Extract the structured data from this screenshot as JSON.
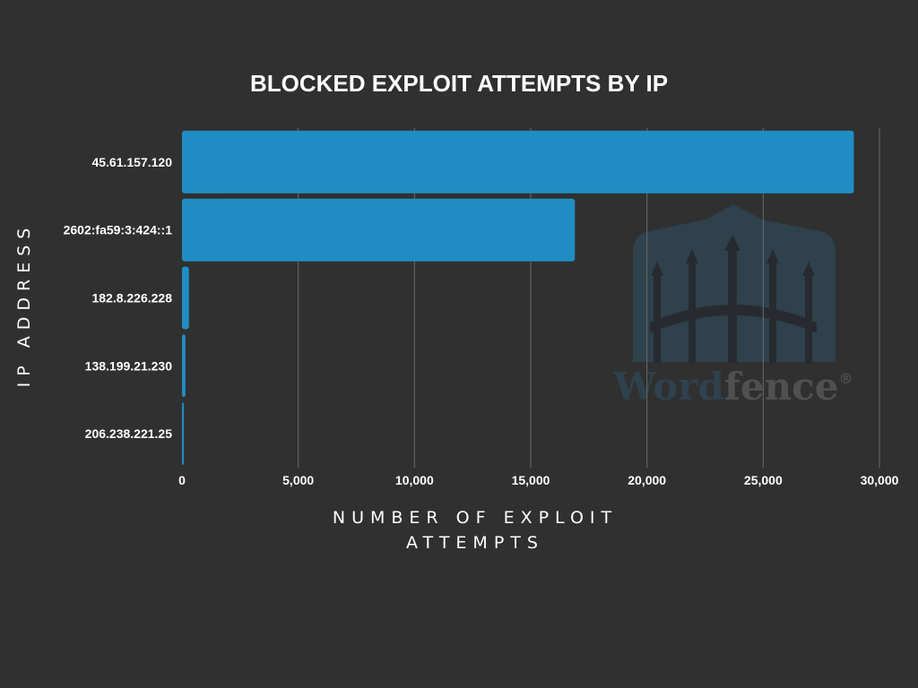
{
  "chart_data": {
    "type": "bar",
    "orientation": "horizontal",
    "title": "BLOCKED EXPLOIT ATTEMPTS BY IP",
    "xlabel": [
      "NUMBER OF EXPLOIT",
      "ATTEMPTS"
    ],
    "ylabel": "IP ADDRESS",
    "categories": [
      "45.61.157.120",
      "2602:fa59:3:424::1",
      "182.8.226.228",
      "138.199.21.230",
      "206.238.221.25"
    ],
    "values": [
      28900,
      16900,
      300,
      150,
      80
    ],
    "xlim": [
      0,
      30000
    ],
    "xticks": [
      0,
      5000,
      10000,
      15000,
      20000,
      25000,
      30000
    ],
    "xtick_labels": [
      "0",
      "5,000",
      "10,000",
      "15,000",
      "20,000",
      "25,000",
      "30,000"
    ],
    "grid": "vertical",
    "bar_color": "#1f8dc3",
    "background": "#303030"
  },
  "watermark": {
    "word_part1": "Word",
    "word_part2": "fence",
    "symbol": "®"
  }
}
